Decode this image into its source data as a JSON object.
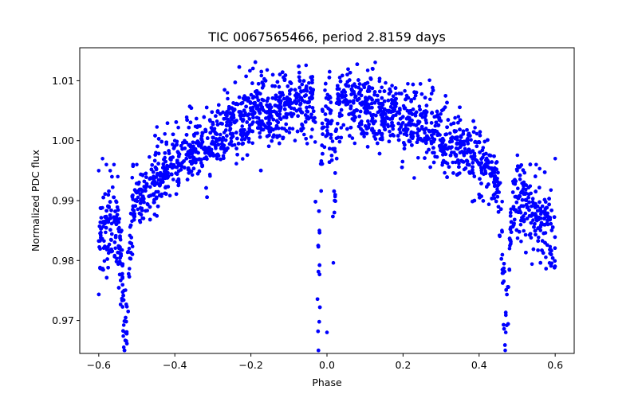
{
  "chart_data": {
    "type": "scatter",
    "title": "TIC 0067565466, period 2.8159 days",
    "xlabel": "Phase",
    "ylabel": "Normalized PDC flux",
    "xlim": [
      -0.65,
      0.65
    ],
    "ylim": [
      0.9645,
      1.0155
    ],
    "xticks": [
      -0.6,
      -0.4,
      -0.2,
      0.0,
      0.2,
      0.4,
      0.6
    ],
    "xtick_labels": [
      "−0.6",
      "−0.4",
      "−0.2",
      "0.0",
      "0.2",
      "0.4",
      "0.6"
    ],
    "yticks": [
      0.97,
      0.98,
      0.99,
      1.0,
      1.01
    ],
    "ytick_labels": [
      "0.97",
      "0.98",
      "0.99",
      "1.00",
      "1.01"
    ],
    "grid": false,
    "marker_color": "#0000ff",
    "model": {
      "baseline_at_phase_0": 1.0065,
      "curvature": -0.065,
      "phase_range": [
        -0.6,
        0.6
      ],
      "primary_eclipse": {
        "phase": 0.0,
        "center_gap": 0.02,
        "min_flux": 0.967
      },
      "secondary_eclipses": [
        {
          "phase": -0.53,
          "min_flux": 0.965
        },
        {
          "phase": 0.47,
          "min_flux": 0.965
        }
      ]
    },
    "points": [
      [
        -0.6,
        0.995
      ],
      [
        -0.59,
        0.997
      ],
      [
        -0.58,
        0.996
      ],
      [
        -0.57,
        0.995
      ],
      [
        -0.56,
        0.996
      ],
      [
        -0.55,
        0.994
      ],
      [
        -0.54,
        0.985
      ],
      [
        -0.53,
        0.968
      ],
      [
        -0.52,
        0.982
      ],
      [
        -0.51,
        0.996
      ],
      [
        -0.5,
        0.996
      ],
      [
        -0.45,
        0.998
      ],
      [
        -0.4,
        1.0
      ],
      [
        -0.35,
        1.001
      ],
      [
        -0.3,
        1.003
      ],
      [
        -0.25,
        1.004
      ],
      [
        -0.2,
        1.005
      ],
      [
        -0.15,
        1.006
      ],
      [
        -0.1,
        1.006
      ],
      [
        -0.05,
        1.004
      ],
      [
        -0.02,
        0.985
      ],
      [
        0.0,
        0.968
      ],
      [
        0.02,
        0.99
      ],
      [
        0.05,
        1.006
      ],
      [
        0.1,
        1.006
      ],
      [
        0.15,
        1.005
      ],
      [
        0.2,
        1.004
      ],
      [
        0.25,
        1.002
      ],
      [
        0.3,
        1.0
      ],
      [
        0.35,
        0.998
      ],
      [
        0.4,
        0.996
      ],
      [
        0.44,
        0.994
      ],
      [
        0.46,
        0.985
      ],
      [
        0.47,
        0.968
      ],
      [
        0.48,
        0.982
      ],
      [
        0.5,
        0.995
      ],
      [
        0.55,
        0.996
      ],
      [
        0.6,
        0.997
      ]
    ]
  }
}
